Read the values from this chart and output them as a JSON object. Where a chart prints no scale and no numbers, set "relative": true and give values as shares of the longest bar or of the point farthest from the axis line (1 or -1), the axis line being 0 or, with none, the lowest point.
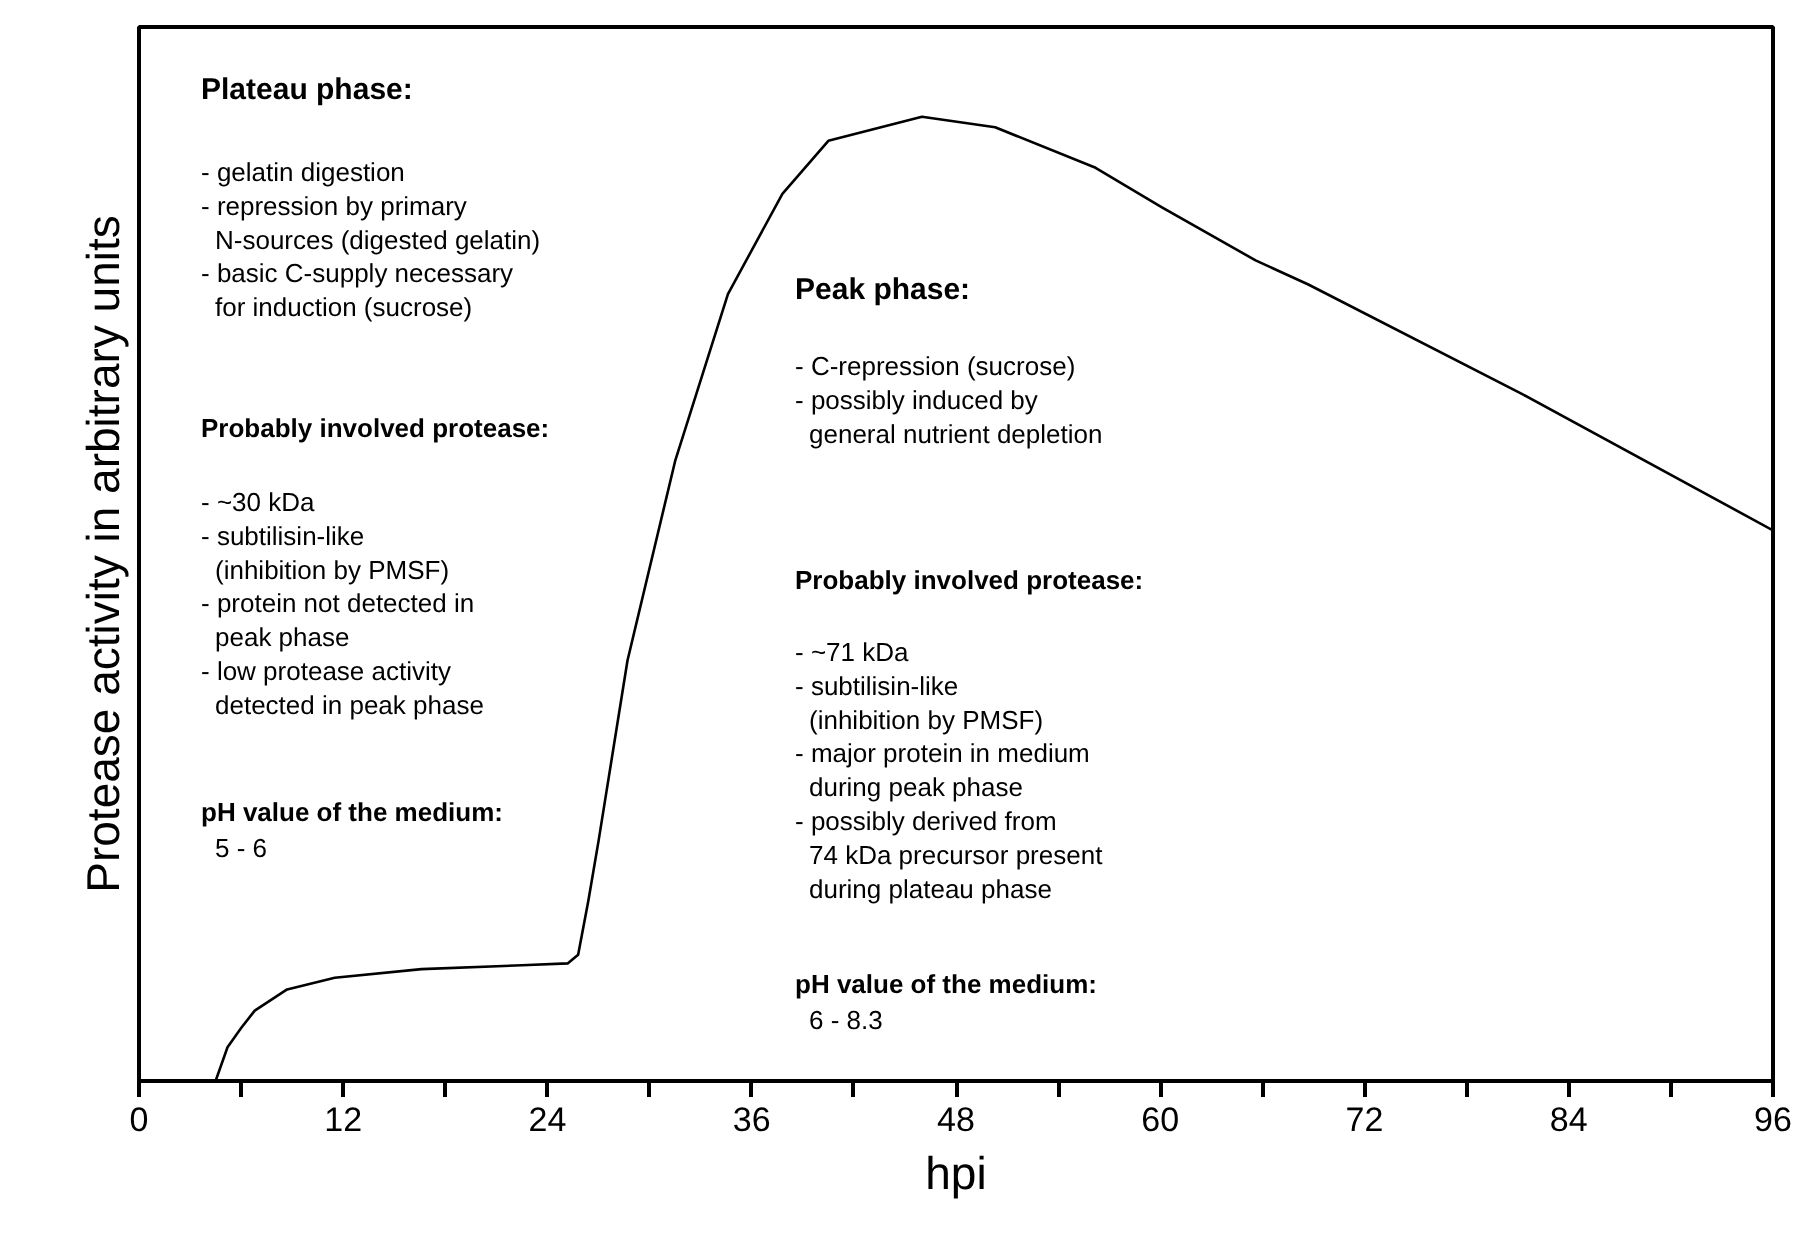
{
  "chart_data": {
    "type": "line",
    "relative": true,
    "xlabel": "hpi",
    "ylabel": "Protease activity in arbitrary units",
    "x": [
      4.5,
      5.2,
      6.0,
      6.8,
      8.7,
      11.5,
      16.6,
      22.5,
      25.2,
      25.8,
      26.4,
      27.0,
      28.7,
      31.5,
      34.6,
      37.8,
      40.5,
      46.0,
      50.3,
      56.2,
      60.1,
      65.6,
      68.7,
      81.3,
      96.0
    ],
    "series": [
      {
        "color": "#000000",
        "values": [
          0,
          0.035,
          0.055,
          0.073,
          0.095,
          0.107,
          0.116,
          0.12,
          0.122,
          0.131,
          0.187,
          0.249,
          0.436,
          0.643,
          0.816,
          0.92,
          0.975,
          1,
          0.989,
          0.947,
          0.906,
          0.851,
          0.826,
          0.712,
          0.571
        ]
      }
    ],
    "xlim": [
      0,
      96
    ],
    "xticks": [
      0,
      {
        "value": 6,
        "label": null
      },
      12,
      {
        "value": 18,
        "label": null
      },
      24,
      {
        "value": 30,
        "label": null
      },
      36,
      {
        "value": 42,
        "label": null
      },
      48,
      {
        "value": 54,
        "label": null
      },
      60,
      {
        "value": 66,
        "label": null
      },
      72,
      {
        "value": 78,
        "label": null
      },
      84,
      {
        "value": 90,
        "label": null
      },
      96
    ],
    "grid": false,
    "marker": "none",
    "line_style": "solid",
    "annotations": [
      "Plateau phase:",
      "- gelatin digestion\n- repression by primary\n  N-sources (digested gelatin)\n- basic C-supply necessary\n  for induction (sucrose)",
      "Probably involved protease:",
      "- ~30 kDa\n- subtilisin-like\n  (inhibition by PMSF)\n- protein not detected in\n  peak phase\n- low protease activity\n  detected in peak phase",
      "pH value of the medium:",
      "  5 - 6",
      "Peak phase:",
      "- C-repression (sucrose)\n- possibly induced by\n  general nutrient depletion",
      "Probably involved protease:",
      "- ~71 kDa\n- subtilisin-like\n  (inhibition by PMSF)\n- major protein in medium\n  during peak phase\n- possibly derived from\n  74 kDa precursor present\n  during plateau phase",
      "pH value of the medium:",
      "  6 - 8.3"
    ]
  }
}
